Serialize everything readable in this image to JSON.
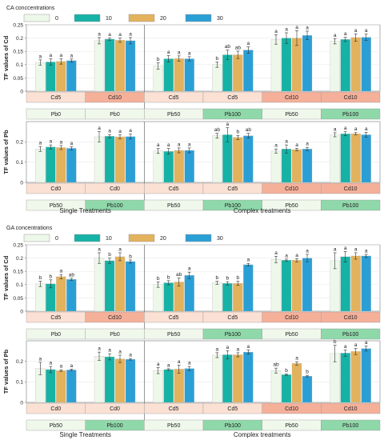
{
  "colors": {
    "c0": "#eef8ea",
    "c10": "#16b2a6",
    "c20": "#e3b25c",
    "c30": "#2a9fd6",
    "cd_light": "#fbe0d4",
    "cd_dark": "#f5b09a",
    "pb_light": "#f0f8ec",
    "pb_dark": "#8fd8aa"
  },
  "section_labels": {
    "single": "Single Treatments",
    "complex": "Complex treatments"
  },
  "legend_values": [
    "0",
    "10",
    "20",
    "30"
  ],
  "chart_data": [
    {
      "type": "bar",
      "legend_title": "CA conccentrations",
      "ylabel": "TF values of Cd",
      "ylim": [
        0,
        0.25
      ],
      "yticks": [
        0,
        0.05,
        0.1,
        0.15,
        0.2,
        0.25
      ],
      "series_names": [
        "0",
        "10",
        "20",
        "30"
      ],
      "groups": [
        {
          "top": "Cd5",
          "bottom": "Pb0",
          "values": [
            0.108,
            0.11,
            0.112,
            0.115
          ],
          "errors": [
            0.01,
            0.012,
            0.01,
            0.006
          ],
          "letters": [
            "a",
            "a",
            "a",
            "a"
          ]
        },
        {
          "top": "Cd10",
          "bottom": "Pb0",
          "values": [
            0.19,
            0.196,
            0.192,
            0.19
          ],
          "errors": [
            0.012,
            0.004,
            0.008,
            0.012
          ],
          "letters": [
            "a",
            "a",
            "a",
            "a"
          ]
        },
        {
          "top": "Cd5",
          "bottom": "Pb50",
          "values": [
            0.095,
            0.122,
            0.123,
            0.122
          ],
          "errors": [
            0.012,
            0.012,
            0.01,
            0.008
          ],
          "letters": [
            "b",
            "a",
            "a",
            "a"
          ]
        },
        {
          "top": "Cd5",
          "bottom": "Pb100",
          "values": [
            0.1,
            0.137,
            0.137,
            0.155
          ],
          "errors": [
            0.01,
            0.018,
            0.014,
            0.012
          ],
          "letters": [
            "b",
            "ab",
            "ab",
            "a"
          ]
        },
        {
          "top": "Cd10",
          "bottom": "Pb50",
          "values": [
            0.195,
            0.2,
            0.2,
            0.21
          ],
          "errors": [
            0.018,
            0.02,
            0.028,
            0.016
          ],
          "letters": [
            "a",
            "a",
            "a",
            "a"
          ]
        },
        {
          "top": "Cd10",
          "bottom": "Pb100",
          "values": [
            0.188,
            0.195,
            0.202,
            0.203
          ],
          "errors": [
            0.01,
            0.008,
            0.014,
            0.012
          ],
          "letters": [
            "a",
            "a",
            "a",
            "a"
          ]
        }
      ]
    },
    {
      "type": "bar",
      "ylabel": "TF values of Pb",
      "ylim": [
        0,
        0.3
      ],
      "yticks": [
        0,
        0.1,
        0.2
      ],
      "series_names": [
        "0",
        "10",
        "20",
        "30"
      ],
      "groups": [
        {
          "top": "Cd0",
          "bottom": "Pb50",
          "values": [
            0.165,
            0.175,
            0.172,
            0.168
          ],
          "errors": [
            0.012,
            0.01,
            0.01,
            0.008
          ],
          "letters": [
            "a",
            "a",
            "a",
            "a"
          ]
        },
        {
          "top": "Cd0",
          "bottom": "Pb100",
          "values": [
            0.225,
            0.228,
            0.225,
            0.226
          ],
          "errors": [
            0.025,
            0.008,
            0.01,
            0.012
          ],
          "letters": [
            "a",
            "a",
            "a",
            "a"
          ]
        },
        {
          "top": "Cd5",
          "bottom": "Pb50",
          "values": [
            0.155,
            0.153,
            0.158,
            0.158
          ],
          "errors": [
            0.012,
            0.014,
            0.012,
            0.012
          ],
          "letters": [
            "a",
            "a",
            "a",
            "a"
          ]
        },
        {
          "top": "Cd5",
          "bottom": "Pb100",
          "values": [
            0.23,
            0.235,
            0.222,
            0.23
          ],
          "errors": [
            0.012,
            0.035,
            0.01,
            0.012
          ],
          "letters": [
            "ab",
            "a",
            "b",
            "ab"
          ]
        },
        {
          "top": "Cd10",
          "bottom": "Pb50",
          "values": [
            0.155,
            0.165,
            0.162,
            0.165
          ],
          "errors": [
            0.01,
            0.02,
            0.006,
            0.008
          ],
          "letters": [
            "a",
            "a",
            "a",
            "a"
          ]
        },
        {
          "top": "Cd10",
          "bottom": "Pb100",
          "values": [
            0.235,
            0.24,
            0.24,
            0.235
          ],
          "errors": [
            0.01,
            0.01,
            0.006,
            0.012
          ],
          "letters": [
            "a",
            "a",
            "a",
            "a"
          ]
        }
      ]
    },
    {
      "type": "bar",
      "legend_title": "GA concentrations",
      "ylabel": "TF values of Cd",
      "ylim": [
        0,
        0.25
      ],
      "yticks": [
        0,
        0.05,
        0.1,
        0.15,
        0.2,
        0.25
      ],
      "series_names": [
        "0",
        "10",
        "20",
        "30"
      ],
      "groups": [
        {
          "top": "Cd5",
          "bottom": "Pb0",
          "values": [
            0.103,
            0.103,
            0.13,
            0.12
          ],
          "errors": [
            0.01,
            0.015,
            0.008,
            0.004
          ],
          "letters": [
            "b",
            "b",
            "a",
            "ab"
          ]
        },
        {
          "top": "Cd10",
          "bottom": "Pb0",
          "values": [
            0.2,
            0.19,
            0.205,
            0.187
          ],
          "errors": [
            0.02,
            0.01,
            0.015,
            0.006
          ],
          "letters": [
            "a",
            "b",
            "a",
            "b"
          ]
        },
        {
          "top": "Cd5",
          "bottom": "Pb50",
          "values": [
            0.1,
            0.107,
            0.11,
            0.135
          ],
          "errors": [
            0.01,
            0.008,
            0.015,
            0.012
          ],
          "letters": [
            "b",
            "b",
            "ab",
            "a"
          ]
        },
        {
          "top": "Cd5",
          "bottom": "Pb100",
          "values": [
            0.107,
            0.105,
            0.105,
            0.175
          ],
          "errors": [
            0.006,
            0.006,
            0.008,
            0.005
          ],
          "letters": [
            "b",
            "b",
            "b",
            "a"
          ]
        },
        {
          "top": "Cd10",
          "bottom": "Pb50",
          "values": [
            0.195,
            0.192,
            0.192,
            0.2
          ],
          "errors": [
            0.012,
            0.004,
            0.006,
            0.014
          ],
          "letters": [
            "a",
            "a",
            "a",
            "a"
          ]
        },
        {
          "top": "Cd10",
          "bottom": "Pb100",
          "values": [
            0.19,
            0.205,
            0.208,
            0.208
          ],
          "errors": [
            0.03,
            0.02,
            0.012,
            0.006
          ],
          "letters": [
            "a",
            "a",
            "a",
            "a"
          ]
        }
      ]
    },
    {
      "type": "bar",
      "ylabel": "TF values of Pb",
      "ylim": [
        0,
        0.3
      ],
      "yticks": [
        0,
        0.1,
        0.2
      ],
      "series_names": [
        "0",
        "10",
        "20",
        "30"
      ],
      "groups": [
        {
          "top": "Cd0",
          "bottom": "Pb50",
          "values": [
            0.165,
            0.16,
            0.155,
            0.158
          ],
          "errors": [
            0.03,
            0.015,
            0.004,
            0.004
          ],
          "letters": [
            "a",
            "a",
            "a",
            "a"
          ]
        },
        {
          "top": "Cd0",
          "bottom": "Pb100",
          "values": [
            0.225,
            0.222,
            0.212,
            0.21
          ],
          "errors": [
            0.02,
            0.015,
            0.018,
            0.004
          ],
          "letters": [
            "a",
            "a",
            "a",
            "a"
          ]
        },
        {
          "top": "Cd5",
          "bottom": "Pb50",
          "values": [
            0.155,
            0.16,
            0.162,
            0.165
          ],
          "errors": [
            0.015,
            0.004,
            0.02,
            0.01
          ],
          "letters": [
            "a",
            "a",
            "a",
            "a"
          ]
        },
        {
          "top": "Cd5",
          "bottom": "Pb100",
          "values": [
            0.23,
            0.232,
            0.232,
            0.245
          ],
          "errors": [
            0.012,
            0.02,
            0.01,
            0.01
          ],
          "letters": [
            "a",
            "a",
            "a",
            "a"
          ]
        },
        {
          "top": "Cd10",
          "bottom": "Pb50",
          "values": [
            0.155,
            0.135,
            0.19,
            0.128
          ],
          "errors": [
            0.012,
            0.004,
            0.008,
            0.004
          ],
          "letters": [
            "ab",
            "b",
            "a",
            "b"
          ]
        },
        {
          "top": "Cd10",
          "bottom": "Pb100",
          "values": [
            0.238,
            0.24,
            0.248,
            0.262
          ],
          "errors": [
            0.04,
            0.015,
            0.015,
            0.012
          ],
          "letters": [
            "b",
            "a",
            "a",
            "a"
          ]
        }
      ]
    }
  ]
}
